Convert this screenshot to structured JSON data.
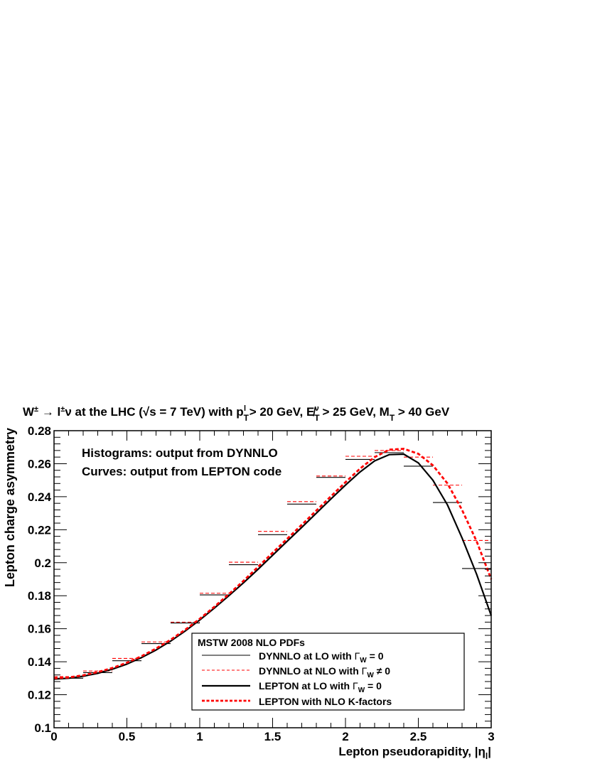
{
  "chart_data": {
    "type": "line",
    "title": "W± → l±ν at the LHC (√s = 7 TeV) with p_T^l > 20 GeV, E̸_T^ν > 25 GeV, M_T > 40 GeV",
    "title_parts": {
      "p1": "W",
      "pm1": "±",
      "arrow": " → l",
      "pm2": "±",
      "nu": "ν at the LHC (",
      "sqrt": "√",
      "s": "s = 7 TeV) with p",
      "sub_T1": "T",
      "sup_l": "l",
      "p2": " > 20 GeV, E̸",
      "sub_T2": "T",
      "sup_nu": "ν",
      "p3": " > 25 GeV, M",
      "sub_T3": "T",
      "p4": " > 40 GeV"
    },
    "xlabel": "Lepton pseudorapidity, |η",
    "xlabel_sub": "l",
    "xlabel_end": "|",
    "ylabel": "Lepton charge asymmetry",
    "xlim": [
      0,
      3
    ],
    "ylim": [
      0.1,
      0.28
    ],
    "xticks": [
      {
        "value": 0,
        "label": "0"
      },
      {
        "value": 0.5,
        "label": "0.5"
      },
      {
        "value": 1,
        "label": "1"
      },
      {
        "value": 1.5,
        "label": "1.5"
      },
      {
        "value": 2,
        "label": "2"
      },
      {
        "value": 2.5,
        "label": "2.5"
      },
      {
        "value": 3,
        "label": "3"
      }
    ],
    "yticks": [
      {
        "value": 0.1,
        "label": "0.1"
      },
      {
        "value": 0.12,
        "label": "0.12"
      },
      {
        "value": 0.14,
        "label": "0.14"
      },
      {
        "value": 0.16,
        "label": "0.16"
      },
      {
        "value": 0.18,
        "label": "0.18"
      },
      {
        "value": 0.2,
        "label": "0.2"
      },
      {
        "value": 0.22,
        "label": "0.22"
      },
      {
        "value": 0.24,
        "label": "0.24"
      },
      {
        "value": 0.26,
        "label": "0.26"
      },
      {
        "value": 0.28,
        "label": "0.28"
      }
    ],
    "grid": false,
    "annotations": [
      "Histograms: output from DYNNLO",
      "Curves: output from LEPTON code"
    ],
    "legend": {
      "title": "MSTW 2008 NLO PDFs",
      "position": "bottom-right",
      "entries": [
        {
          "pre": "DYNNLO at LO with ",
          "gamma": "Γ",
          "sub": "W",
          "post": " = 0"
        },
        {
          "pre": "DYNNLO at NLO with ",
          "gamma": "Γ",
          "sub": "W",
          "post": " ≠ 0"
        },
        {
          "pre": "LEPTON at LO with ",
          "gamma": "Γ",
          "sub": "W",
          "post": " = 0"
        },
        {
          "pre": "LEPTON with NLO K-factors",
          "gamma": "",
          "sub": "",
          "post": ""
        }
      ]
    },
    "bin_edges": [
      0,
      0.2,
      0.4,
      0.6,
      0.8,
      1.0,
      1.2,
      1.4,
      1.6,
      1.8,
      2.0,
      2.2,
      2.4,
      2.6,
      2.8,
      3.0
    ],
    "series": [
      {
        "name": "DYNNLO at LO with Γ_W = 0",
        "kind": "histogram",
        "color": "#000000",
        "values": [
          0.13,
          0.1334,
          0.1406,
          0.151,
          0.1635,
          0.1805,
          0.1988,
          0.217,
          0.2355,
          0.2517,
          0.2626,
          0.2667,
          0.2585,
          0.2365,
          0.1965
        ]
      },
      {
        "name": "DYNNLO at NLO with Γ_W ≠ 0",
        "kind": "histogram",
        "color": "#ff0000",
        "values": [
          0.131,
          0.1344,
          0.142,
          0.152,
          0.164,
          0.1815,
          0.2003,
          0.219,
          0.237,
          0.2525,
          0.2645,
          0.268,
          0.264,
          0.247,
          0.2135
        ]
      },
      {
        "name": "LEPTON at LO with Γ_W = 0",
        "kind": "curve",
        "color": "#000000",
        "x": [
          0,
          0.1,
          0.2,
          0.3,
          0.4,
          0.5,
          0.6,
          0.7,
          0.8,
          0.9,
          1.0,
          1.1,
          1.2,
          1.3,
          1.4,
          1.5,
          1.6,
          1.7,
          1.8,
          1.9,
          2.0,
          2.1,
          2.2,
          2.3,
          2.4,
          2.5,
          2.6,
          2.7,
          2.8,
          2.9,
          3.0
        ],
        "y": [
          0.1295,
          0.13,
          0.1312,
          0.133,
          0.1355,
          0.1386,
          0.1425,
          0.1471,
          0.1525,
          0.1586,
          0.1653,
          0.1725,
          0.18,
          0.1878,
          0.196,
          0.2045,
          0.213,
          0.2214,
          0.23,
          0.2386,
          0.247,
          0.255,
          0.2617,
          0.2655,
          0.2658,
          0.2605,
          0.25,
          0.235,
          0.215,
          0.193,
          0.168
        ]
      },
      {
        "name": "LEPTON with NLO K-factors",
        "kind": "curve",
        "color": "#ff0000",
        "x": [
          0,
          0.1,
          0.2,
          0.3,
          0.4,
          0.5,
          0.6,
          0.7,
          0.8,
          0.9,
          1.0,
          1.1,
          1.2,
          1.3,
          1.4,
          1.5,
          1.6,
          1.7,
          1.8,
          1.9,
          2.0,
          2.1,
          2.2,
          2.3,
          2.4,
          2.5,
          2.6,
          2.7,
          2.8,
          2.9,
          3.0
        ],
        "y": [
          0.13,
          0.1305,
          0.1318,
          0.1337,
          0.1362,
          0.1394,
          0.1433,
          0.148,
          0.1533,
          0.1594,
          0.166,
          0.1733,
          0.181,
          0.189,
          0.1975,
          0.206,
          0.2145,
          0.223,
          0.2316,
          0.2402,
          0.2488,
          0.257,
          0.264,
          0.2685,
          0.269,
          0.266,
          0.259,
          0.248,
          0.232,
          0.213,
          0.19
        ]
      }
    ]
  }
}
